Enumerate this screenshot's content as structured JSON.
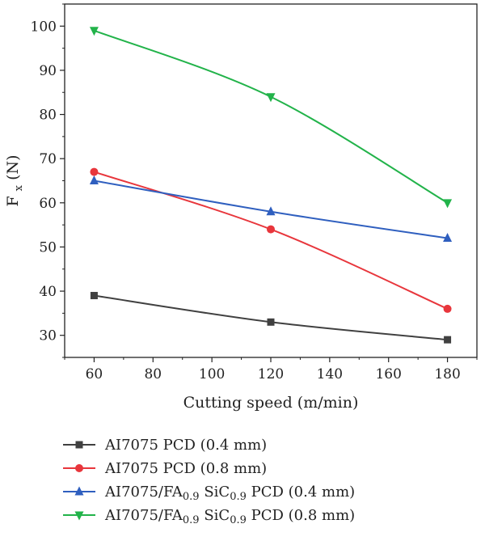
{
  "chart_data": {
    "type": "line",
    "xlabel": "Cutting speed (m/min)",
    "ylabel_main": "F",
    "ylabel_sub": "x",
    "ylabel_unit": " (N)",
    "xlim": [
      50,
      190
    ],
    "ylim": [
      25,
      105
    ],
    "xticks": [
      60,
      80,
      100,
      120,
      140,
      160,
      180
    ],
    "yticks": [
      30,
      40,
      50,
      60,
      70,
      80,
      90,
      100
    ],
    "grid": false,
    "legend_position": "bottom",
    "x": [
      60,
      120,
      180
    ],
    "series": [
      {
        "label_parts": [
          "AI7075 PCD (0.4 mm)"
        ],
        "marker": "square",
        "color": "#404040",
        "values": [
          39,
          33,
          29
        ]
      },
      {
        "label_parts": [
          "AI7075 PCD (0.8 mm)"
        ],
        "marker": "circle",
        "color": "#e8363c",
        "values": [
          67,
          54,
          36
        ]
      },
      {
        "label_parts": [
          "AI7075/FA",
          "0.9",
          " SiC",
          "0.9",
          " PCD (0.4 mm)"
        ],
        "marker": "triangle-up",
        "color": "#2f5fbf",
        "values": [
          65,
          58,
          52
        ]
      },
      {
        "label_parts": [
          "AI7075/FA",
          "0.9",
          " SiC",
          "0.9",
          " PCD (0.8 mm)"
        ],
        "marker": "triangle-down",
        "color": "#22b34a",
        "values": [
          99,
          84,
          60
        ]
      }
    ]
  }
}
